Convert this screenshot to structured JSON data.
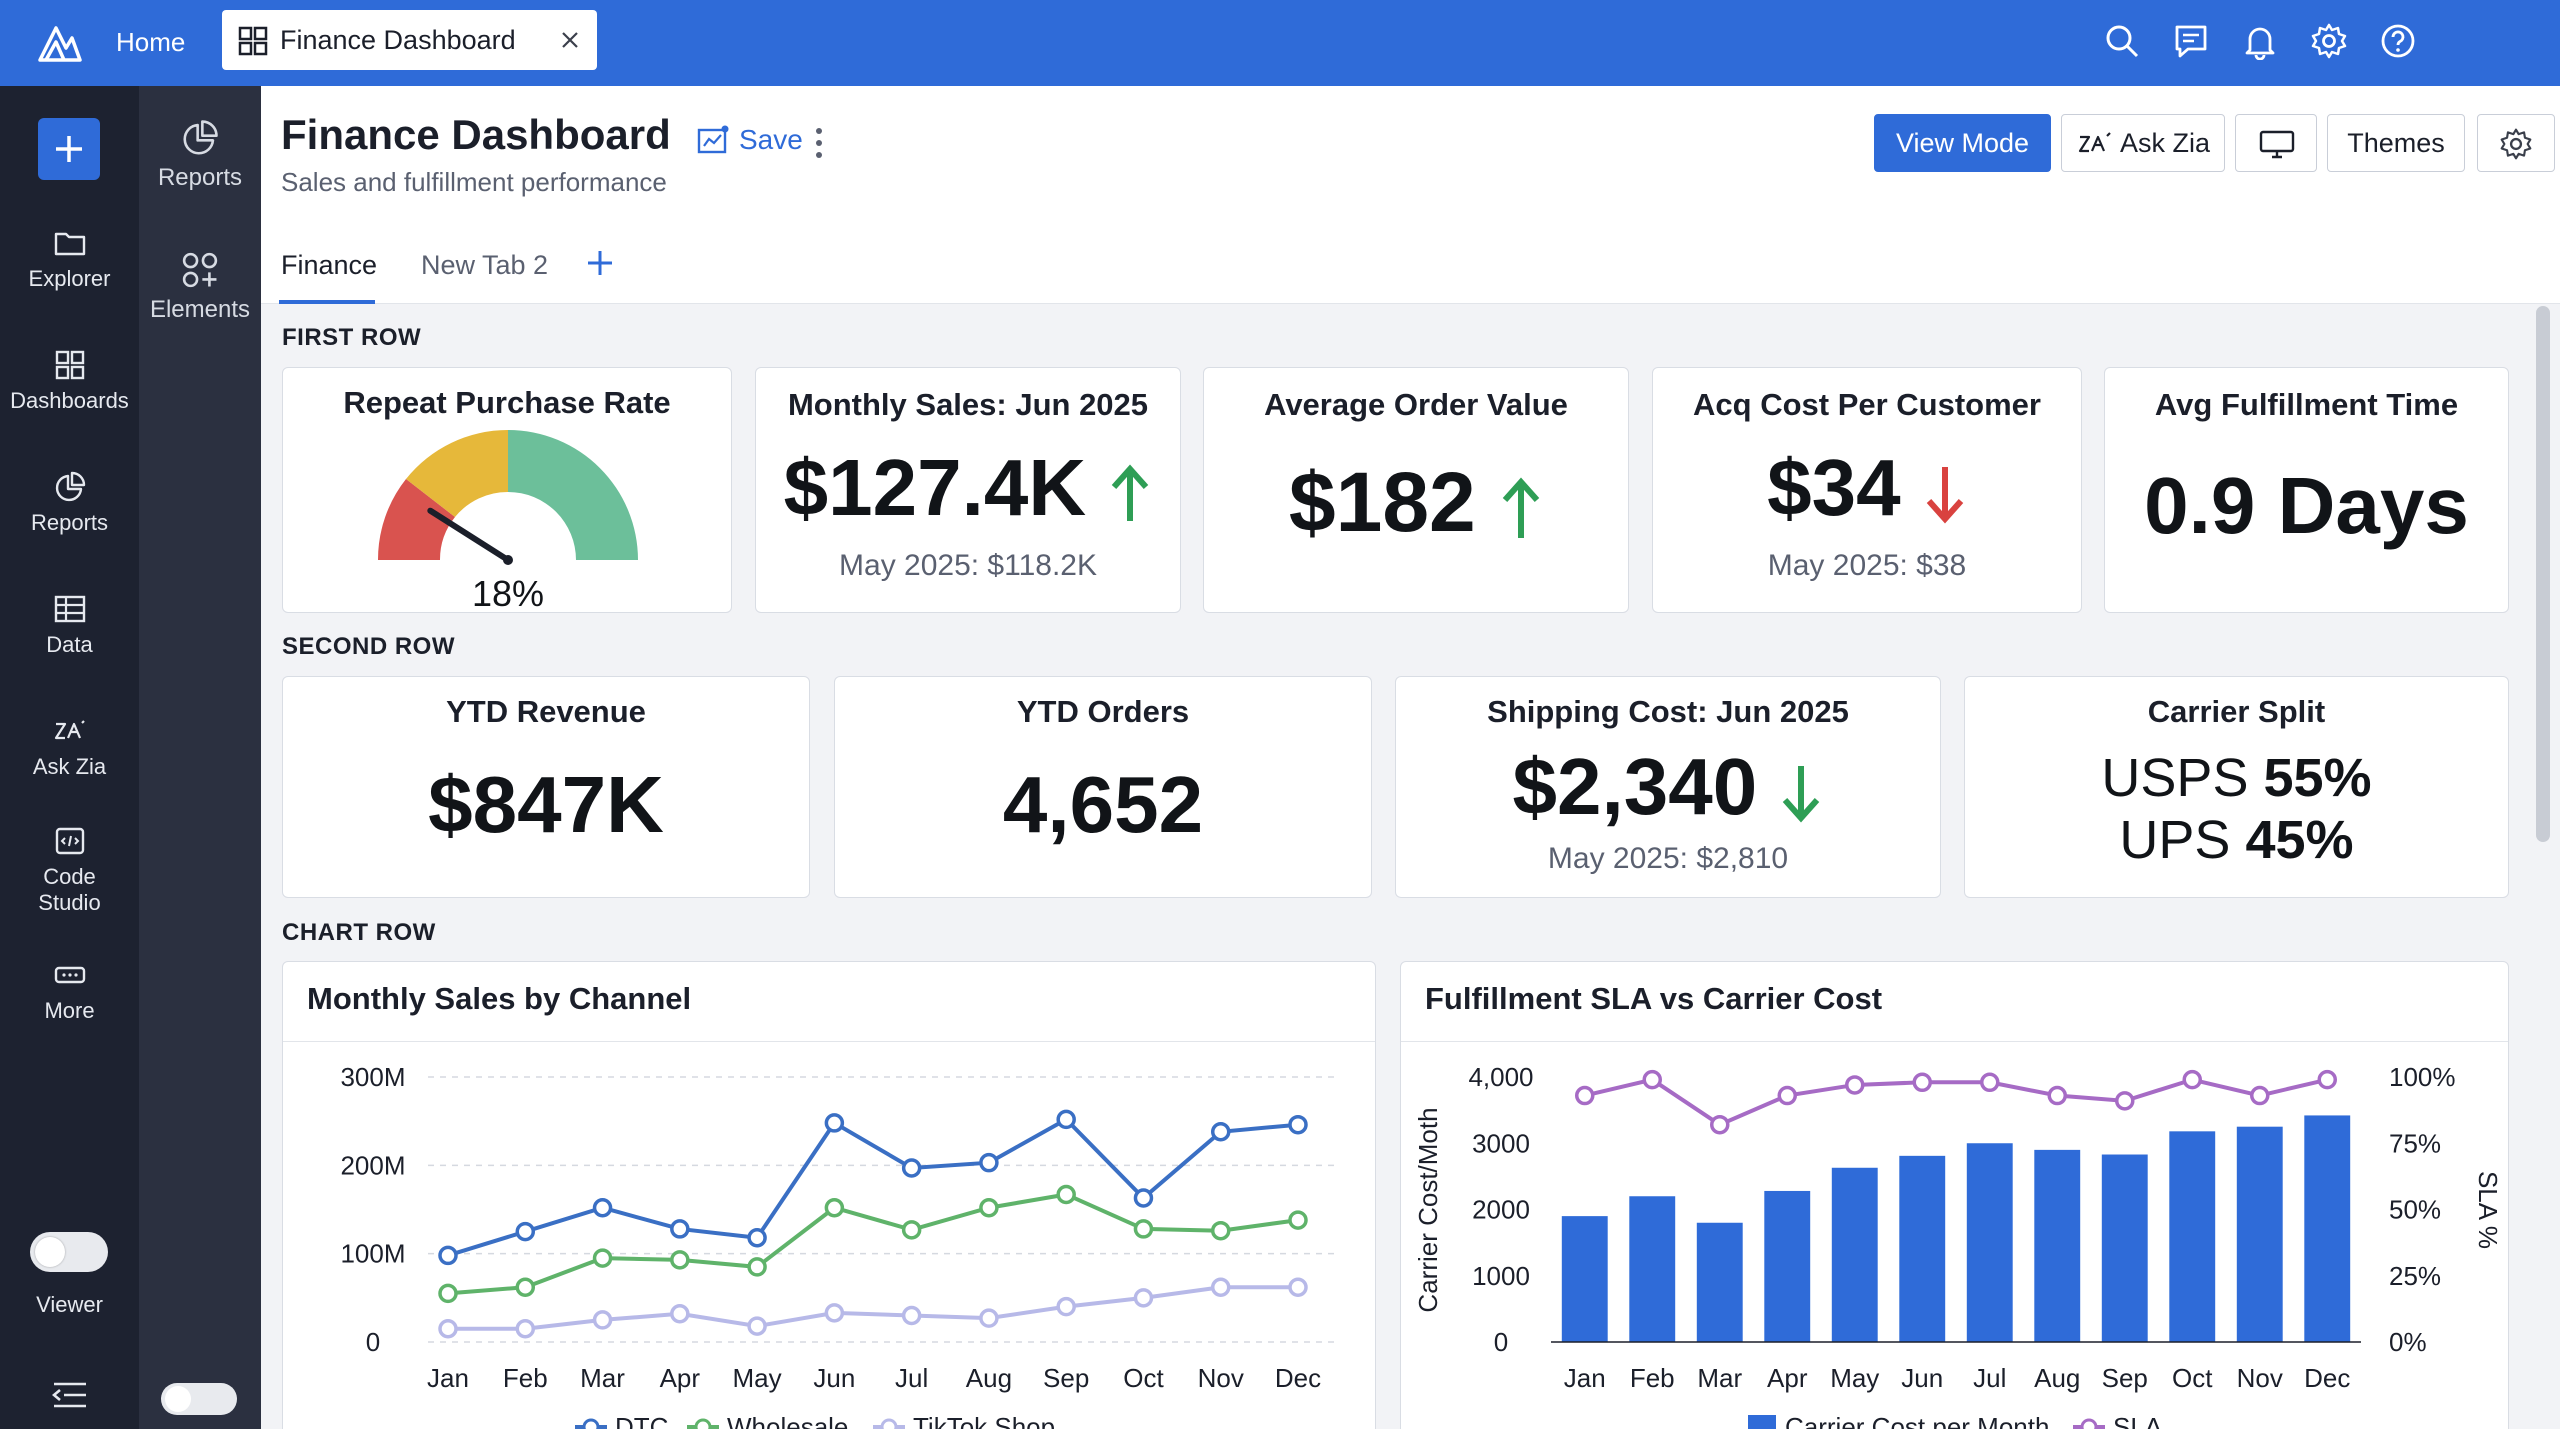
{
  "topbar": {
    "home_label": "Home",
    "tab_label": "Finance Dashboard",
    "icons": [
      "search-icon",
      "chat-icon",
      "bell-icon",
      "gear-icon",
      "help-icon"
    ]
  },
  "rail": {
    "items": [
      {
        "label": "Explorer",
        "icon": "folder-icon"
      },
      {
        "label": "Dashboards",
        "icon": "grid-icon"
      },
      {
        "label": "Reports",
        "icon": "pie-icon"
      },
      {
        "label": "Data",
        "icon": "table-icon"
      },
      {
        "label": "Ask Zia",
        "icon": "zia-icon"
      },
      {
        "label": "Code\nStudio",
        "label_line1": "Code",
        "label_line2": "Studio",
        "icon": "code-icon"
      },
      {
        "label": "More",
        "icon": "more-icon"
      }
    ],
    "viewer_label": "Viewer"
  },
  "subpanel": {
    "items": [
      {
        "label": "Reports",
        "icon": "pie-icon"
      },
      {
        "label": "Elements",
        "icon": "elements-icon"
      }
    ]
  },
  "header": {
    "title": "Finance Dashboard",
    "subtitle": "Sales and fulfillment performance",
    "save_label": "Save",
    "view_mode_label": "View Mode",
    "ask_zia_label": "Ask Zia",
    "themes_label": "Themes",
    "tabs": [
      {
        "label": "Finance",
        "active": true
      },
      {
        "label": "New Tab 2",
        "active": false
      }
    ]
  },
  "sections": {
    "first": "FIRST ROW",
    "second": "SECOND ROW",
    "chart": "CHART ROW"
  },
  "first_row": {
    "repeat_purchase": {
      "title": "Repeat Purchase Rate",
      "value": "18%",
      "gauge_fraction": 0.18
    },
    "monthly_sales": {
      "title": "Monthly Sales: Jun 2025",
      "value": "$127.4K",
      "trend": "up",
      "compare": "May 2025: $118.2K"
    },
    "avg_order": {
      "title": "Average Order Value",
      "value": "$182",
      "trend": "up"
    },
    "acq_cost": {
      "title": "Acq Cost Per Customer",
      "value": "$34",
      "trend": "down",
      "compare": "May 2025: $38"
    },
    "fulfillment": {
      "title": "Avg Fulfillment Time",
      "value": "0.9 Days"
    }
  },
  "second_row": {
    "ytd_revenue": {
      "title": "YTD Revenue",
      "value": "$847K"
    },
    "ytd_orders": {
      "title": "YTD Orders",
      "value": "4,652"
    },
    "shipping": {
      "title": "Shipping Cost: Jun 2025",
      "value": "$2,340",
      "trend": "down",
      "compare": "May 2025: $2,810"
    },
    "carrier_split": {
      "title": "Carrier Split",
      "usps_label": "USPS",
      "usps_value": "55%",
      "ups_label": "UPS",
      "ups_value": "45%"
    }
  },
  "colors": {
    "accent": "#2f6bd8",
    "up": "#2e9e55",
    "down": "#d9423f",
    "dtc": "#3a6fc4",
    "wholesale": "#5fb36a",
    "tiktok": "#b7b9e8",
    "bar": "#2f6bd8",
    "sla": "#a66bc5"
  },
  "chart_data": [
    {
      "type": "line",
      "title": "Monthly Sales by Channel",
      "categories": [
        "Jan",
        "Feb",
        "Mar",
        "Apr",
        "May",
        "Jun",
        "Jul",
        "Aug",
        "Sep",
        "Oct",
        "Nov",
        "Dec"
      ],
      "y_ticks": [
        "0",
        "100M",
        "200M",
        "300M"
      ],
      "ylim": [
        0,
        300
      ],
      "grid": true,
      "legend": "bottom",
      "series": [
        {
          "name": "DTC",
          "values": [
            98,
            125,
            152,
            128,
            118,
            248,
            197,
            203,
            252,
            163,
            238,
            246
          ]
        },
        {
          "name": "Wholesale",
          "values": [
            55,
            62,
            95,
            93,
            85,
            152,
            127,
            152,
            167,
            128,
            126,
            138
          ]
        },
        {
          "name": "TikTok Shop",
          "values": [
            15,
            15,
            25,
            32,
            18,
            33,
            30,
            27,
            40,
            50,
            62,
            62
          ]
        }
      ]
    },
    {
      "type": "bar",
      "title": "Fulfillment SLA vs Carrier Cost",
      "categories": [
        "Jan",
        "Feb",
        "Mar",
        "Apr",
        "May",
        "Jun",
        "Jul",
        "Aug",
        "Sep",
        "Oct",
        "Nov",
        "Dec"
      ],
      "ylabel": "Carrier Cost/Moth",
      "y2label": "SLA %",
      "y_ticks": [
        "0",
        "1000",
        "2000",
        "3000",
        "4,000"
      ],
      "y2_ticks": [
        "0%",
        "25%",
        "50%",
        "75%",
        "100%"
      ],
      "ylim": [
        0,
        4000
      ],
      "y2lim": [
        0,
        100
      ],
      "legend": "bottom",
      "series": [
        {
          "name": "Carrier Cost per Month",
          "type": "bar",
          "values": [
            1900,
            2200,
            1800,
            2280,
            2630,
            2810,
            3000,
            2900,
            2830,
            3180,
            3250,
            3420
          ]
        },
        {
          "name": "SLA",
          "type": "line",
          "values": [
            93,
            99,
            82,
            93,
            97,
            98,
            98,
            93,
            91,
            99,
            93,
            99
          ]
        }
      ]
    }
  ]
}
